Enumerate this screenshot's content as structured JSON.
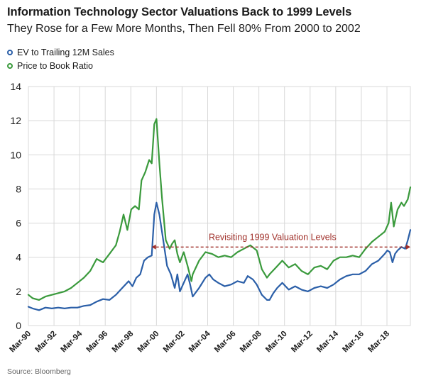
{
  "header": {
    "title": "Information Technology Sector Valuations Back to 1999 Levels",
    "subtitle": "They Rose for a Few More Months, Then Fell 80% From 2000 to 2002"
  },
  "source": "Source: Bloomberg",
  "colors": {
    "ev": "#2b5fa8",
    "pb": "#3a9a3c",
    "annotation": "#a0302a",
    "grid": "#d8d8d8"
  },
  "chart_data": {
    "type": "line",
    "ylim": [
      0,
      14
    ],
    "yticks": [
      0,
      2,
      4,
      6,
      8,
      10,
      12,
      14
    ],
    "xlim": [
      1990.17,
      2020.0
    ],
    "xticks": [
      {
        "label": "Mar-90",
        "x": 1990.17
      },
      {
        "label": "Mar-92",
        "x": 1992.17
      },
      {
        "label": "Mar-94",
        "x": 1994.17
      },
      {
        "label": "Mar-96",
        "x": 1996.17
      },
      {
        "label": "Mar-98",
        "x": 1998.17
      },
      {
        "label": "Mar-00",
        "x": 2000.17
      },
      {
        "label": "Mar-02",
        "x": 2002.17
      },
      {
        "label": "Mar-04",
        "x": 2004.17
      },
      {
        "label": "Mar-06",
        "x": 2006.17
      },
      {
        "label": "Mar-08",
        "x": 2008.17
      },
      {
        "label": "Mar-10",
        "x": 2010.17
      },
      {
        "label": "Mar-12",
        "x": 2012.17
      },
      {
        "label": "Mar-14",
        "x": 2014.17
      },
      {
        "label": "Mar-16",
        "x": 2016.17
      },
      {
        "label": "Mar-18",
        "x": 2018.17
      }
    ],
    "grid": "vertical-and-horizontal",
    "legend_position": "top-left",
    "series": [
      {
        "name": "EV to Trailing 12M Sales",
        "color": "#2b5fa8",
        "x": [
          1990.17,
          1990.5,
          1991.0,
          1991.5,
          1992.0,
          1992.5,
          1993.0,
          1993.5,
          1994.0,
          1994.5,
          1995.0,
          1995.5,
          1996.0,
          1996.5,
          1997.0,
          1997.5,
          1998.0,
          1998.3,
          1998.6,
          1998.9,
          1999.2,
          1999.5,
          1999.8,
          2000.0,
          2000.17,
          2000.4,
          2000.7,
          2001.0,
          2001.3,
          2001.6,
          2001.8,
          2002.0,
          2002.3,
          2002.6,
          2002.8,
          2003.0,
          2003.5,
          2004.0,
          2004.3,
          2004.6,
          2005.0,
          2005.5,
          2006.0,
          2006.5,
          2007.0,
          2007.3,
          2007.7,
          2008.0,
          2008.4,
          2008.8,
          2009.0,
          2009.3,
          2009.6,
          2010.0,
          2010.5,
          2011.0,
          2011.5,
          2012.0,
          2012.5,
          2013.0,
          2013.5,
          2014.0,
          2014.5,
          2015.0,
          2015.5,
          2016.0,
          2016.5,
          2017.0,
          2017.5,
          2018.0,
          2018.2,
          2018.4,
          2018.6,
          2018.8,
          2019.0,
          2019.3,
          2019.6,
          2019.8,
          2020.0
        ],
        "values": [
          1.1,
          1.0,
          0.9,
          1.05,
          1.0,
          1.05,
          1.0,
          1.05,
          1.05,
          1.15,
          1.2,
          1.4,
          1.55,
          1.5,
          1.8,
          2.2,
          2.6,
          2.3,
          2.8,
          3.0,
          3.8,
          4.0,
          4.1,
          6.5,
          7.2,
          6.5,
          5.0,
          3.5,
          3.0,
          2.2,
          3.0,
          2.0,
          2.5,
          3.0,
          2.4,
          1.7,
          2.2,
          2.8,
          3.0,
          2.7,
          2.5,
          2.3,
          2.4,
          2.6,
          2.5,
          2.9,
          2.7,
          2.4,
          1.8,
          1.5,
          1.5,
          1.9,
          2.2,
          2.5,
          2.1,
          2.3,
          2.1,
          2.0,
          2.2,
          2.3,
          2.2,
          2.4,
          2.7,
          2.9,
          3.0,
          3.0,
          3.2,
          3.6,
          3.8,
          4.2,
          4.4,
          4.3,
          3.7,
          4.2,
          4.4,
          4.6,
          4.5,
          5.0,
          5.6
        ]
      },
      {
        "name": "Price to Book Ratio",
        "color": "#3a9a3c",
        "x": [
          1990.17,
          1990.5,
          1991.0,
          1991.5,
          1992.0,
          1992.5,
          1993.0,
          1993.5,
          1994.0,
          1994.5,
          1995.0,
          1995.5,
          1996.0,
          1996.5,
          1997.0,
          1997.3,
          1997.6,
          1997.9,
          1998.2,
          1998.5,
          1998.8,
          1999.0,
          1999.3,
          1999.6,
          1999.8,
          2000.0,
          2000.17,
          2000.4,
          2000.6,
          2000.9,
          2001.2,
          2001.4,
          2001.6,
          2001.8,
          2002.0,
          2002.3,
          2002.6,
          2002.9,
          2003.0,
          2003.5,
          2004.0,
          2004.5,
          2005.0,
          2005.5,
          2006.0,
          2006.5,
          2007.0,
          2007.5,
          2008.0,
          2008.4,
          2008.8,
          2009.0,
          2009.5,
          2010.0,
          2010.5,
          2011.0,
          2011.5,
          2012.0,
          2012.5,
          2013.0,
          2013.5,
          2014.0,
          2014.5,
          2015.0,
          2015.5,
          2016.0,
          2016.5,
          2017.0,
          2017.5,
          2018.0,
          2018.3,
          2018.5,
          2018.7,
          2019.0,
          2019.3,
          2019.5,
          2019.8,
          2020.0
        ],
        "values": [
          1.8,
          1.6,
          1.5,
          1.7,
          1.8,
          1.9,
          2.0,
          2.2,
          2.5,
          2.8,
          3.2,
          3.9,
          3.7,
          4.2,
          4.7,
          5.5,
          6.5,
          5.6,
          6.8,
          7.0,
          6.8,
          8.5,
          9.0,
          9.7,
          9.5,
          11.8,
          12.1,
          9.5,
          7.5,
          5.0,
          4.5,
          4.8,
          5.0,
          4.2,
          3.7,
          4.3,
          3.5,
          2.6,
          3.0,
          3.8,
          4.3,
          4.2,
          4.0,
          4.1,
          4.0,
          4.3,
          4.5,
          4.7,
          4.4,
          3.3,
          2.8,
          3.0,
          3.4,
          3.8,
          3.4,
          3.6,
          3.2,
          3.0,
          3.4,
          3.5,
          3.3,
          3.8,
          4.0,
          4.0,
          4.1,
          4.0,
          4.5,
          4.9,
          5.2,
          5.5,
          6.0,
          7.2,
          5.8,
          6.8,
          7.2,
          7.0,
          7.4,
          8.1
        ]
      }
    ],
    "annotation": {
      "text": "Revisiting 1999 Valuation Levels",
      "y": 4.6,
      "x_start": 1999.8,
      "x_end": 2020.0
    }
  }
}
